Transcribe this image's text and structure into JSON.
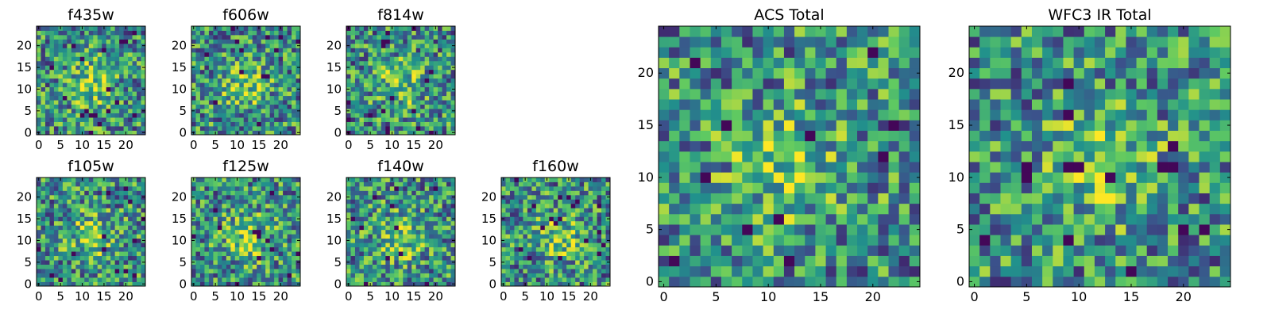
{
  "figure": {
    "colormap": "viridis",
    "colors": [
      "#440154",
      "#3b528b",
      "#21918c",
      "#5ec962",
      "#fde725"
    ]
  },
  "chart_data": [
    {
      "type": "heatmap",
      "title": "f435w",
      "x_range": [
        0,
        24
      ],
      "y_range": [
        0,
        24
      ],
      "xticks": [
        "0",
        "5",
        "10",
        "15",
        "20"
      ],
      "yticks": [
        "0",
        "5",
        "10",
        "15",
        "20"
      ]
    },
    {
      "type": "heatmap",
      "title": "f606w",
      "x_range": [
        0,
        24
      ],
      "y_range": [
        0,
        24
      ],
      "xticks": [
        "0",
        "5",
        "10",
        "15",
        "20"
      ],
      "yticks": [
        "0",
        "5",
        "10",
        "15",
        "20"
      ]
    },
    {
      "type": "heatmap",
      "title": "f814w",
      "x_range": [
        0,
        24
      ],
      "y_range": [
        0,
        24
      ],
      "xticks": [
        "0",
        "5",
        "10",
        "15",
        "20"
      ],
      "yticks": [
        "0",
        "5",
        "10",
        "15",
        "20"
      ]
    },
    {
      "type": "heatmap",
      "title": "f105w",
      "x_range": [
        0,
        24
      ],
      "y_range": [
        0,
        24
      ],
      "xticks": [
        "0",
        "5",
        "10",
        "15",
        "20"
      ],
      "yticks": [
        "0",
        "5",
        "10",
        "15",
        "20"
      ]
    },
    {
      "type": "heatmap",
      "title": "f125w",
      "x_range": [
        0,
        24
      ],
      "y_range": [
        0,
        24
      ],
      "xticks": [
        "0",
        "5",
        "10",
        "15",
        "20"
      ],
      "yticks": [
        "0",
        "5",
        "10",
        "15",
        "20"
      ]
    },
    {
      "type": "heatmap",
      "title": "f140w",
      "x_range": [
        0,
        24
      ],
      "y_range": [
        0,
        24
      ],
      "xticks": [
        "0",
        "5",
        "10",
        "15",
        "20"
      ],
      "yticks": [
        "0",
        "5",
        "10",
        "15",
        "20"
      ]
    },
    {
      "type": "heatmap",
      "title": "f160w",
      "x_range": [
        0,
        24
      ],
      "y_range": [
        0,
        24
      ],
      "xticks": [
        "0",
        "5",
        "10",
        "15",
        "20"
      ],
      "yticks": [
        "0",
        "5",
        "10",
        "15",
        "20"
      ]
    },
    {
      "type": "heatmap",
      "title": "ACS Total",
      "x_range": [
        0,
        24
      ],
      "y_range": [
        0,
        24
      ],
      "xticks": [
        "0",
        "5",
        "10",
        "15",
        "20"
      ],
      "yticks": [
        "0",
        "5",
        "10",
        "15",
        "20"
      ]
    },
    {
      "type": "heatmap",
      "title": "WFC3 IR Total",
      "x_range": [
        0,
        24
      ],
      "y_range": [
        0,
        24
      ],
      "xticks": [
        "0",
        "5",
        "10",
        "15",
        "20"
      ],
      "yticks": [
        "0",
        "5",
        "10",
        "15",
        "20"
      ]
    }
  ]
}
